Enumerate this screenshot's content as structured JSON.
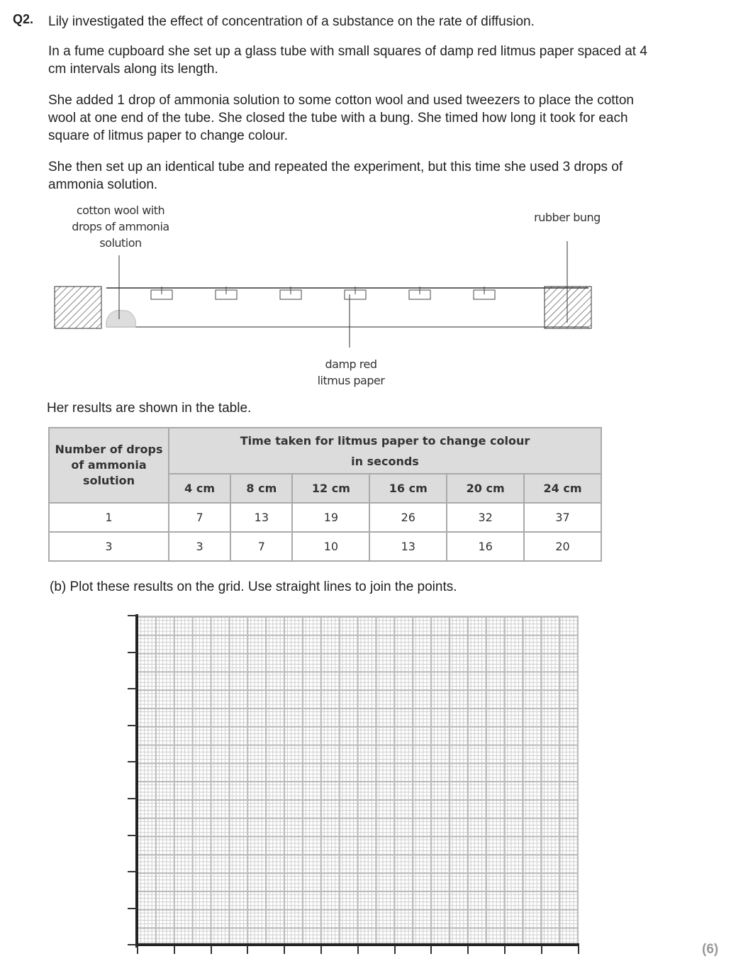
{
  "question": {
    "number": "Q2.",
    "intro": "Lily investigated the effect of concentration of a substance on the rate of diffusion.",
    "para1": "In a fume cupboard she set up a glass tube with small squares of damp red litmus paper spaced at 4 cm intervals along its length.",
    "para2": "She added 1 drop of ammonia solution to some cotton wool and used tweezers to place the cotton wool at one end of the tube. She closed the tube with a bung. She timed how long it took for each square of litmus paper to change colour.",
    "para3": "She then set up an identical tube and repeated the experiment, but this time she used 3 drops of ammonia solution."
  },
  "diagram": {
    "label_cotton_1": "cotton wool with",
    "label_cotton_2": "drops of ammonia",
    "label_cotton_3": "solution",
    "label_bung": "rubber bung",
    "label_litmus_1": "damp red",
    "label_litmus_2": "litmus paper"
  },
  "results_intro": "Her results are shown in the table.",
  "table": {
    "row_header": "Number of drops of ammonia solution",
    "group_header_1": "Time taken for litmus paper to change colour",
    "group_header_2": "in seconds",
    "columns": [
      "4 cm",
      "8 cm",
      "12 cm",
      "16 cm",
      "20 cm",
      "24 cm"
    ],
    "rows": [
      {
        "drops": "1",
        "times": [
          "7",
          "13",
          "19",
          "26",
          "32",
          "37"
        ]
      },
      {
        "drops": "3",
        "times": [
          "3",
          "7",
          "10",
          "13",
          "16",
          "20"
        ]
      }
    ]
  },
  "part_b": "(b) Plot these results on the grid. Use straight lines to join the points.",
  "marks": "(6)"
}
